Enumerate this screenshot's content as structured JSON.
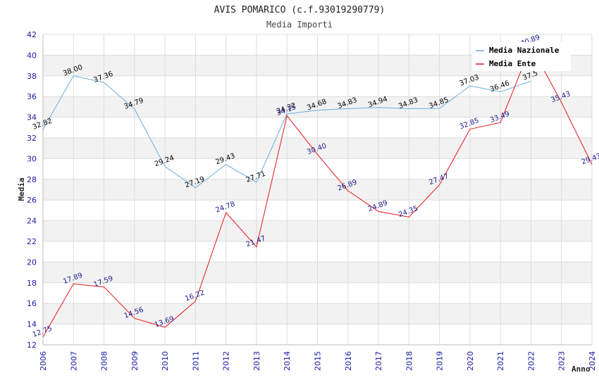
{
  "chart_data": {
    "type": "line",
    "title": "AVIS POMARICO (c.f.93019290779)",
    "subtitle": "Media Importi",
    "xlabel": "Anno",
    "ylabel": "Media",
    "x": [
      "2006",
      "2007",
      "2008",
      "2009",
      "2010",
      "2011",
      "2012",
      "2013",
      "2014",
      "2015",
      "2016",
      "2017",
      "2018",
      "2019",
      "2020",
      "2021",
      "2022",
      "2023",
      "2024"
    ],
    "ylim": [
      12,
      42
    ],
    "yticks": [
      12,
      14,
      16,
      18,
      20,
      22,
      24,
      26,
      28,
      30,
      32,
      34,
      36,
      38,
      40,
      42
    ],
    "legend_position": "top-right",
    "series": [
      {
        "name": "Media Nazionale",
        "color": "#6aaee0",
        "label_color": "#000000",
        "values": [
          32.82,
          38.0,
          37.36,
          34.79,
          29.24,
          27.19,
          29.43,
          27.71,
          34.32,
          34.68,
          34.83,
          34.94,
          34.83,
          34.85,
          37.03,
          36.46,
          37.5,
          null,
          null
        ],
        "labels": [
          "32.82",
          "38.00",
          "37.36",
          "34.79",
          "29.24",
          "27.19",
          "29.43",
          "27.71",
          "34.32",
          "34.68",
          "34.83",
          "34.94",
          "34.83",
          "34.85",
          "37.03",
          "36.46",
          "37.5",
          "",
          ""
        ]
      },
      {
        "name": "Media Ente",
        "color": "#e8141b",
        "label_color": "#1a1a8c",
        "values": [
          12.75,
          17.89,
          17.59,
          14.56,
          13.69,
          16.22,
          24.78,
          21.47,
          34.15,
          30.4,
          26.89,
          24.89,
          24.35,
          27.47,
          32.85,
          33.49,
          40.89,
          35.43,
          29.43
        ],
        "labels": [
          "12.75",
          "17.89",
          "17.59",
          "14.56",
          "13.69",
          "16.22",
          "24.78",
          "21.47",
          "34.15",
          "30.40",
          "26.89",
          "24.89",
          "24.35",
          "27.47",
          "32.85",
          "33.49",
          "40.89",
          "35.43",
          "29.43"
        ]
      }
    ]
  },
  "colors": {
    "band_light": "#f2f2f2",
    "band_white": "#ffffff",
    "grid": "#dddddd",
    "axis": "#bbbbbb",
    "tick_text": "#1a1aa6"
  }
}
